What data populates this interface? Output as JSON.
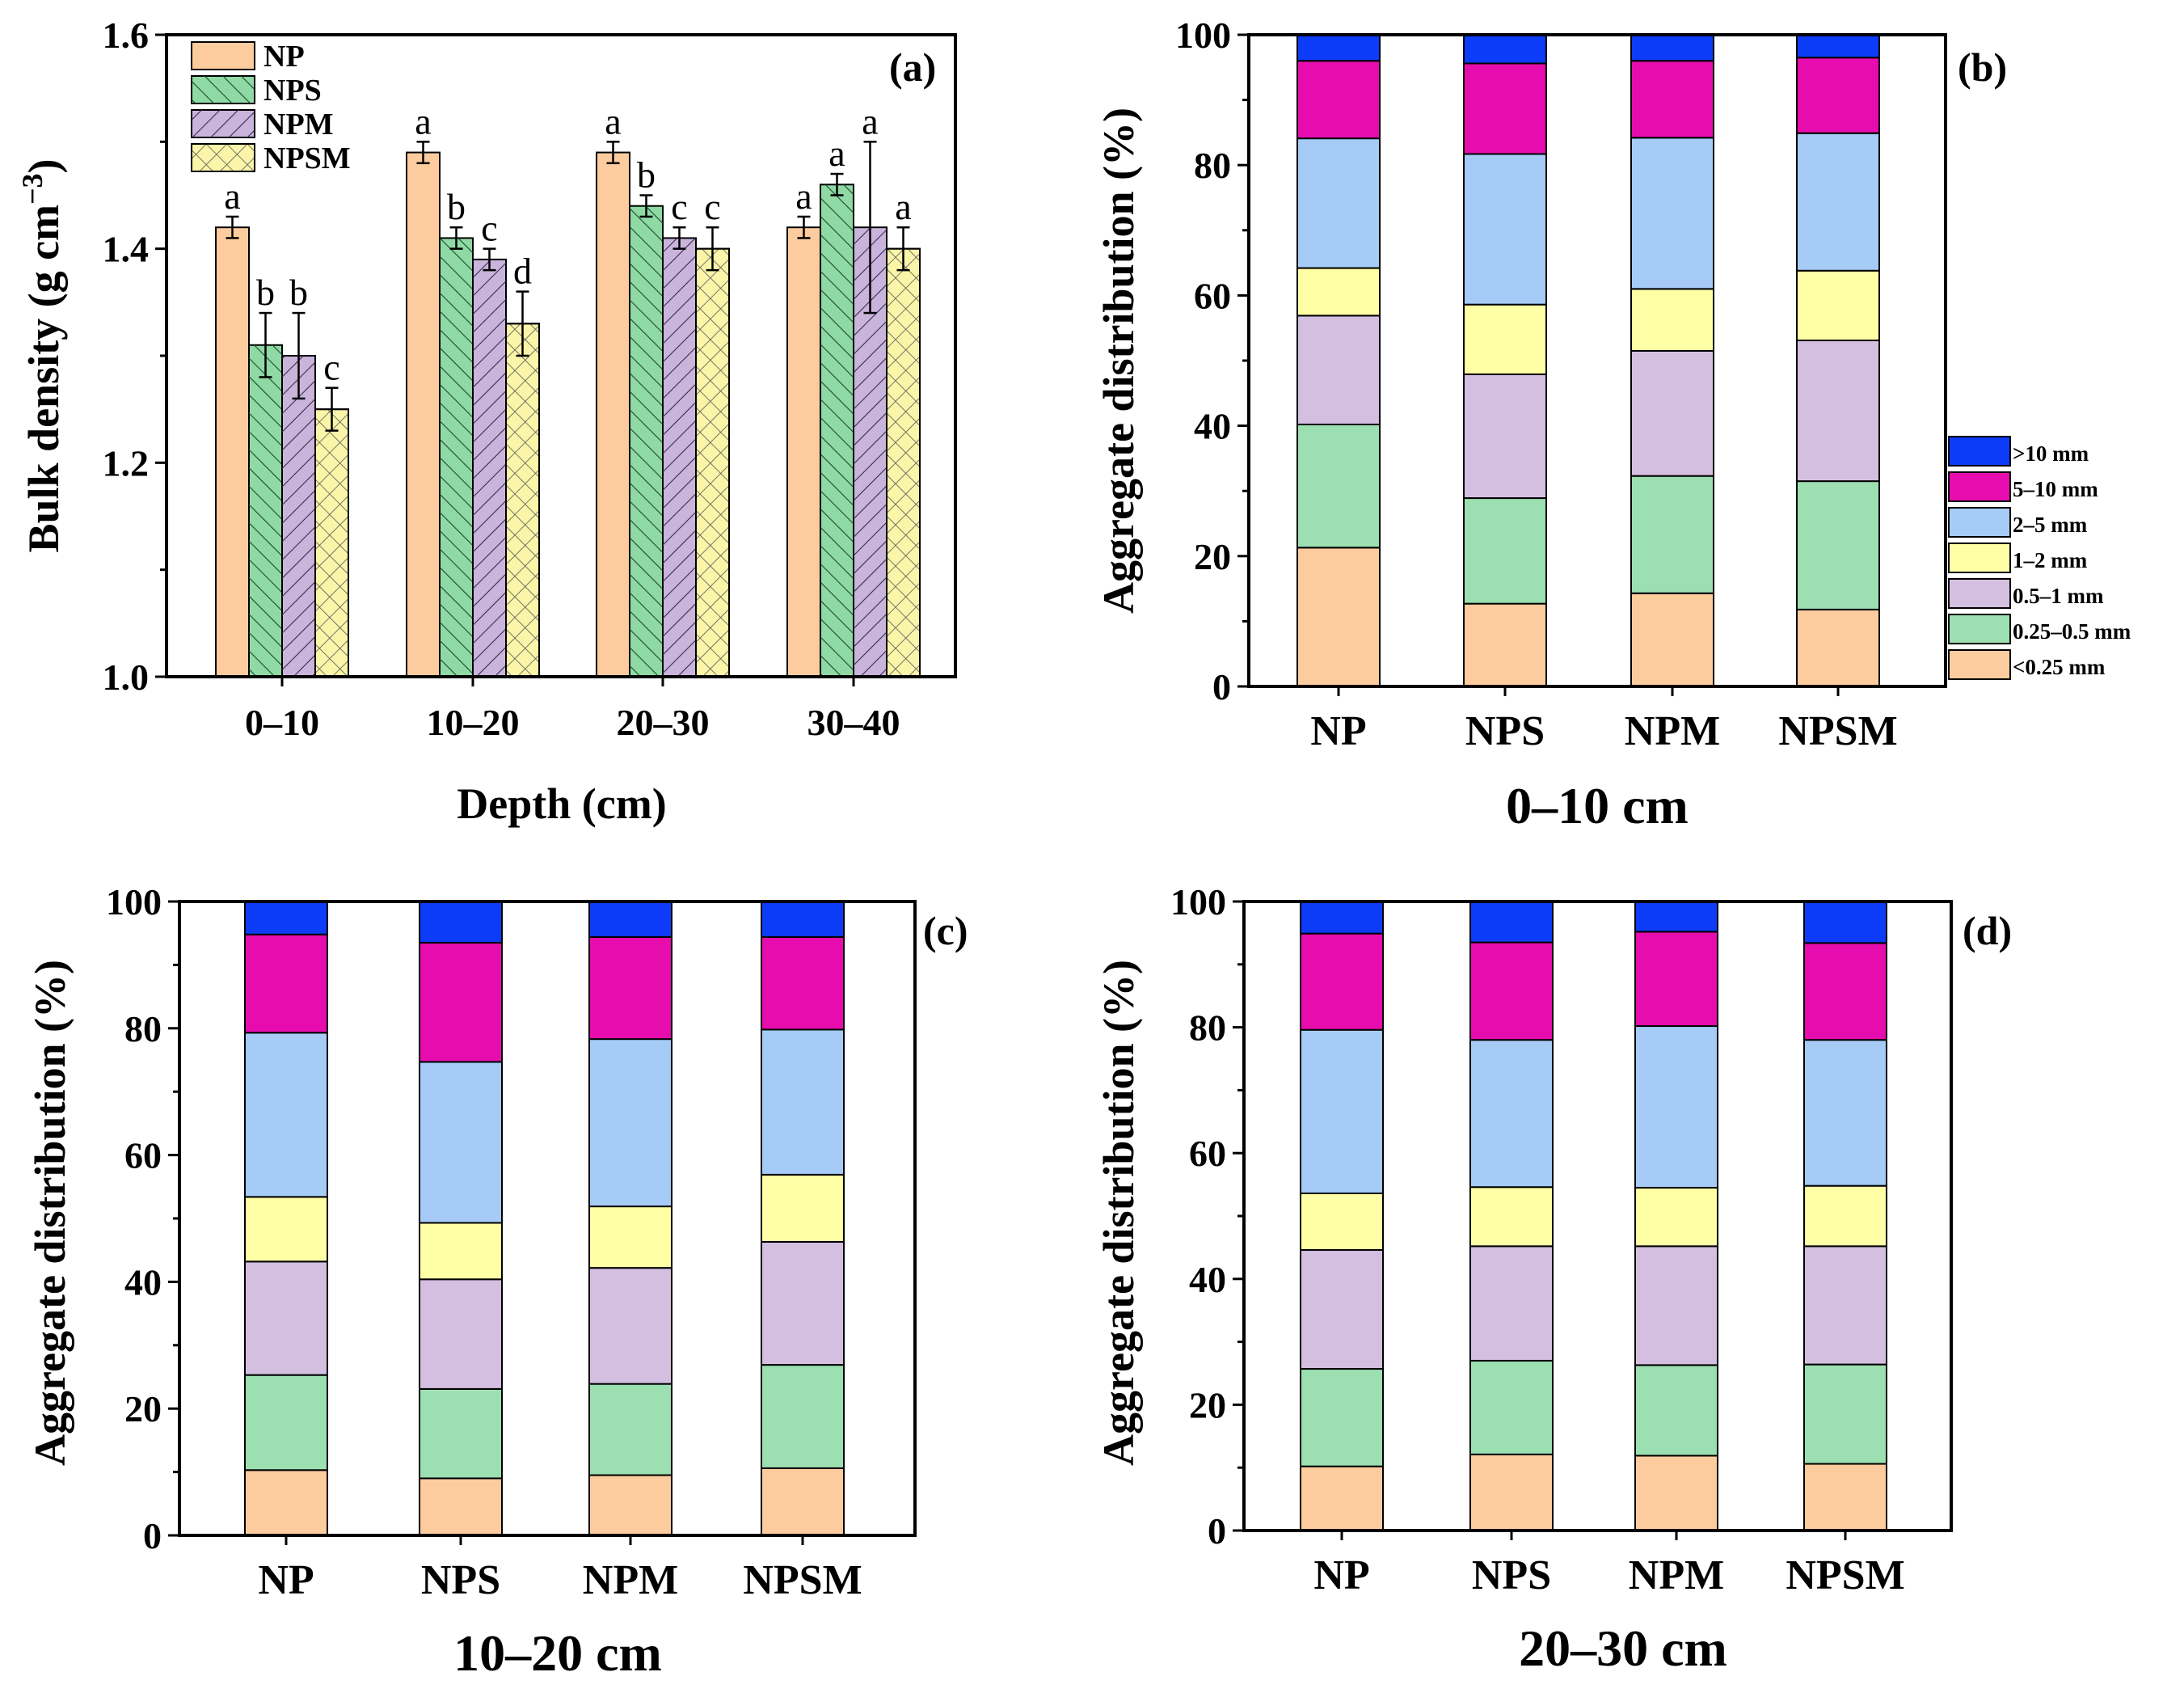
{
  "colors": {
    "NP": "#FCCC9E",
    "NPS": "#8FD9A5",
    "NPM": "#C9B4DB",
    "NPSM": "#FAF5A8",
    "stack": [
      "#FCCC9E",
      "#9CDFB0",
      "#D4BFE0",
      "#FFFFA6",
      "#A6CBF7",
      "#E60CAE",
      "#0C3CF7"
    ]
  },
  "chart_data": [
    {
      "id": "a",
      "type": "bar",
      "panel_label": "(a)",
      "title": "",
      "xlabel": "Depth (cm)",
      "ylabel_main": "Bulk density (g cm",
      "ylabel_sup": "−3",
      "ylabel_end": ")",
      "ylim": [
        1.0,
        1.6
      ],
      "yticks": [
        "1.0",
        "1.2",
        "1.4",
        "1.6"
      ],
      "categories": [
        "0–10",
        "10–20",
        "20–30",
        "30–40"
      ],
      "legend": [
        "NP",
        "NPS",
        "NPM",
        "NPSM"
      ],
      "series": [
        {
          "name": "NP",
          "values": [
            1.42,
            1.49,
            1.49,
            1.42
          ],
          "errors": [
            0.01,
            0.01,
            0.01,
            0.01
          ],
          "letters": [
            "a",
            "a",
            "a",
            "a"
          ]
        },
        {
          "name": "NPS",
          "values": [
            1.31,
            1.41,
            1.44,
            1.46
          ],
          "errors": [
            0.03,
            0.01,
            0.01,
            0.01
          ],
          "letters": [
            "b",
            "b",
            "b",
            "a"
          ]
        },
        {
          "name": "NPM",
          "values": [
            1.3,
            1.39,
            1.41,
            1.42
          ],
          "errors": [
            0.04,
            0.01,
            0.01,
            0.08
          ],
          "letters": [
            "b",
            "c",
            "c",
            "a"
          ]
        },
        {
          "name": "NPSM",
          "values": [
            1.25,
            1.33,
            1.4,
            1.4
          ],
          "errors": [
            0.02,
            0.03,
            0.02,
            0.02
          ],
          "letters": [
            "c",
            "d",
            "c",
            "a"
          ]
        }
      ]
    },
    {
      "id": "b",
      "type": "bar",
      "stacked": true,
      "panel_label": "(b)",
      "title": "0–10 cm",
      "ylabel": "Aggregate distribution (%)",
      "ylim": [
        0,
        100
      ],
      "yticks": [
        "0",
        "20",
        "40",
        "60",
        "80",
        "100"
      ],
      "categories": [
        "NP",
        "NPS",
        "NPM",
        "NPSM"
      ],
      "series": [
        {
          "name": "<0.25 mm",
          "values": [
            21.3,
            12.7,
            14.3,
            11.8
          ]
        },
        {
          "name": "0.25–0.5 mm",
          "values": [
            18.9,
            16.2,
            18.0,
            19.7
          ]
        },
        {
          "name": "0.5–1 mm",
          "values": [
            16.7,
            19.0,
            19.2,
            21.6
          ]
        },
        {
          "name": "1–2 mm",
          "values": [
            7.3,
            10.7,
            9.5,
            10.7
          ]
        },
        {
          "name": "2–5 mm",
          "values": [
            19.9,
            23.1,
            23.2,
            21.1
          ]
        },
        {
          "name": "5–10 mm",
          "values": [
            11.9,
            13.9,
            11.8,
            11.6
          ]
        },
        {
          "name": ">10 mm",
          "values": [
            4.0,
            4.4,
            4.0,
            3.5
          ]
        }
      ]
    },
    {
      "id": "c",
      "type": "bar",
      "stacked": true,
      "panel_label": "(c)",
      "title": "10–20 cm",
      "ylabel": "Aggregate distribution (%)",
      "ylim": [
        0,
        100
      ],
      "yticks": [
        "0",
        "20",
        "40",
        "60",
        "80",
        "100"
      ],
      "categories": [
        "NP",
        "NPS",
        "NPM",
        "NPSM"
      ],
      "series": [
        {
          "name": "<0.25 mm",
          "values": [
            10.3,
            9.0,
            9.5,
            10.6
          ]
        },
        {
          "name": "0.25–0.5 mm",
          "values": [
            15.0,
            14.1,
            14.4,
            16.3
          ]
        },
        {
          "name": "0.5–1 mm",
          "values": [
            17.9,
            17.3,
            18.3,
            19.4
          ]
        },
        {
          "name": "1–2 mm",
          "values": [
            10.2,
            8.9,
            9.7,
            10.6
          ]
        },
        {
          "name": "2–5 mm",
          "values": [
            25.9,
            25.4,
            26.4,
            22.9
          ]
        },
        {
          "name": "5–10 mm",
          "values": [
            15.5,
            18.8,
            16.1,
            14.6
          ]
        },
        {
          "name": ">10 mm",
          "values": [
            5.2,
            6.5,
            5.6,
            5.6
          ]
        }
      ]
    },
    {
      "id": "d",
      "type": "bar",
      "stacked": true,
      "panel_label": "(d)",
      "title": "20–30 cm",
      "ylabel": "Aggregate distribution (%)",
      "ylim": [
        0,
        100
      ],
      "yticks": [
        "0",
        "20",
        "40",
        "60",
        "80",
        "100"
      ],
      "categories": [
        "NP",
        "NPS",
        "NPM",
        "NPSM"
      ],
      "series": [
        {
          "name": "<0.25 mm",
          "values": [
            10.2,
            12.1,
            11.9,
            10.6
          ]
        },
        {
          "name": "0.25–0.5 mm",
          "values": [
            15.5,
            14.9,
            14.4,
            15.8
          ]
        },
        {
          "name": "0.5–1 mm",
          "values": [
            18.9,
            18.2,
            18.9,
            18.8
          ]
        },
        {
          "name": "1–2 mm",
          "values": [
            9.0,
            9.4,
            9.3,
            9.6
          ]
        },
        {
          "name": "2–5 mm",
          "values": [
            26.0,
            23.4,
            25.7,
            23.2
          ]
        },
        {
          "name": "5–10 mm",
          "values": [
            15.3,
            15.5,
            15.0,
            15.4
          ]
        },
        {
          "name": ">10 mm",
          "values": [
            5.1,
            6.5,
            4.8,
            6.6
          ]
        }
      ]
    }
  ],
  "stack_legend": [
    ">10 mm",
    "5–10 mm",
    "2–5 mm",
    "1–2 mm",
    "0.5–1 mm",
    "0.25–0.5 mm",
    "<0.25 mm"
  ]
}
